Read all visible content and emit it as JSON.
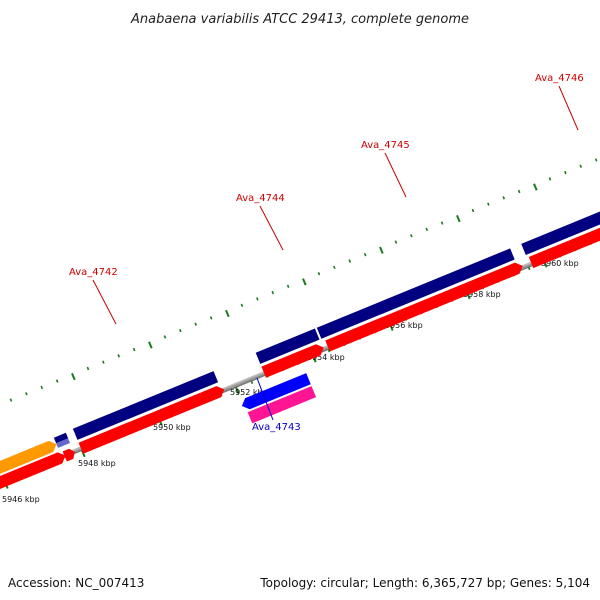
{
  "title": "Anabaena variabilis ATCC 29413, complete genome",
  "footer": {
    "accession": "Accession: NC_007413",
    "summary": "Topology: circular; Length: 6,365,727 bp; Genes: 5,104"
  },
  "colors": {
    "backbone": "#8c8c8c",
    "tick": "#1a7a1a",
    "gene_forward": "#000080",
    "cds_forward": "#ff0000",
    "gene_reverse": "#0000ff",
    "cds_reverse": "#ff1493",
    "other": "#ff9900",
    "label_forward": "#cc0000",
    "label_reverse": "#0000cc"
  },
  "axis": {
    "unit": "kbp",
    "tick_labels": [
      "5946 kbp",
      "5948 kbp",
      "5950 kbp",
      "5952 kbp",
      "5954 kbp",
      "5956 kbp",
      "5958 kbp",
      "5960 kbp"
    ]
  },
  "genes": [
    {
      "name": "Ava_4742",
      "strand": "forward"
    },
    {
      "name": "Ava_4743",
      "strand": "reverse"
    },
    {
      "name": "Ava_4744",
      "strand": "forward"
    },
    {
      "name": "Ava_4745",
      "strand": "forward"
    },
    {
      "name": "Ava_4746",
      "strand": "forward"
    }
  ]
}
